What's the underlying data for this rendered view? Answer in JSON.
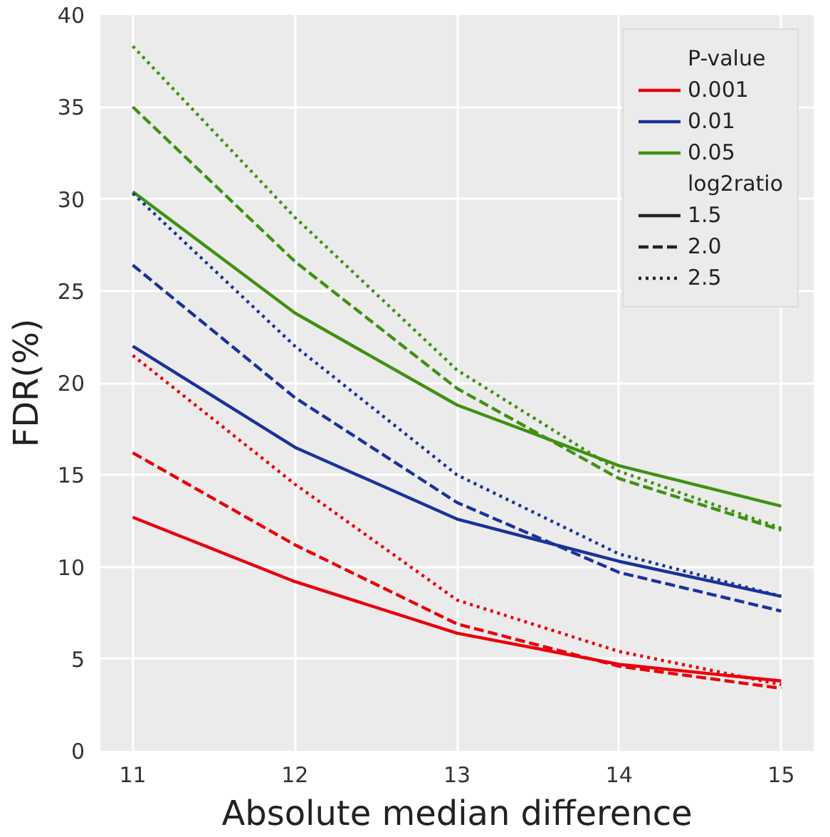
{
  "chart_data": {
    "type": "line",
    "xlabel": "Absolute median difference",
    "ylabel": "FDR(%)",
    "x": [
      11,
      12,
      13,
      14,
      15
    ],
    "xlim": [
      10.8,
      15.2
    ],
    "ylim": [
      0,
      40
    ],
    "xticks": [
      11,
      12,
      13,
      14,
      15
    ],
    "yticks": [
      0,
      5,
      10,
      15,
      20,
      25,
      30,
      35,
      40
    ],
    "grid": true,
    "legend": "top right",
    "legend_title": "P-value",
    "annotations": [
      "log2ratio",
      "1.5",
      "2.0",
      "2.5"
    ],
    "series": [
      {
        "name": "0.001",
        "color": "#e8000b",
        "line_style": "solid",
        "values": [
          12.7,
          9.2,
          6.4,
          4.7,
          3.8
        ]
      },
      {
        "name": "0.01",
        "color": "#1a3299",
        "line_style": "solid",
        "values": [
          22.0,
          16.5,
          12.6,
          10.3,
          8.4
        ]
      },
      {
        "name": "0.05",
        "color": "#3f9112",
        "line_style": "solid",
        "values": [
          30.4,
          23.8,
          18.8,
          15.5,
          13.3
        ]
      },
      {
        "color": "#e8000b",
        "line_style": "dashed",
        "values": [
          16.2,
          11.2,
          6.9,
          4.6,
          3.4
        ]
      },
      {
        "color": "#1a3299",
        "line_style": "dashed",
        "values": [
          26.4,
          19.2,
          13.5,
          9.7,
          7.6
        ]
      },
      {
        "color": "#3f9112",
        "line_style": "dashed",
        "values": [
          35.0,
          26.6,
          19.7,
          14.8,
          12.0
        ]
      },
      {
        "color": "#e8000b",
        "line_style": "dotted",
        "values": [
          21.5,
          14.5,
          8.2,
          5.4,
          3.6
        ]
      },
      {
        "color": "#1a3299",
        "line_style": "dotted",
        "values": [
          30.3,
          22.0,
          15.0,
          10.7,
          8.4
        ]
      },
      {
        "color": "#3f9112",
        "line_style": "dotted",
        "values": [
          38.3,
          29.0,
          20.7,
          15.2,
          12.1
        ]
      }
    ]
  }
}
